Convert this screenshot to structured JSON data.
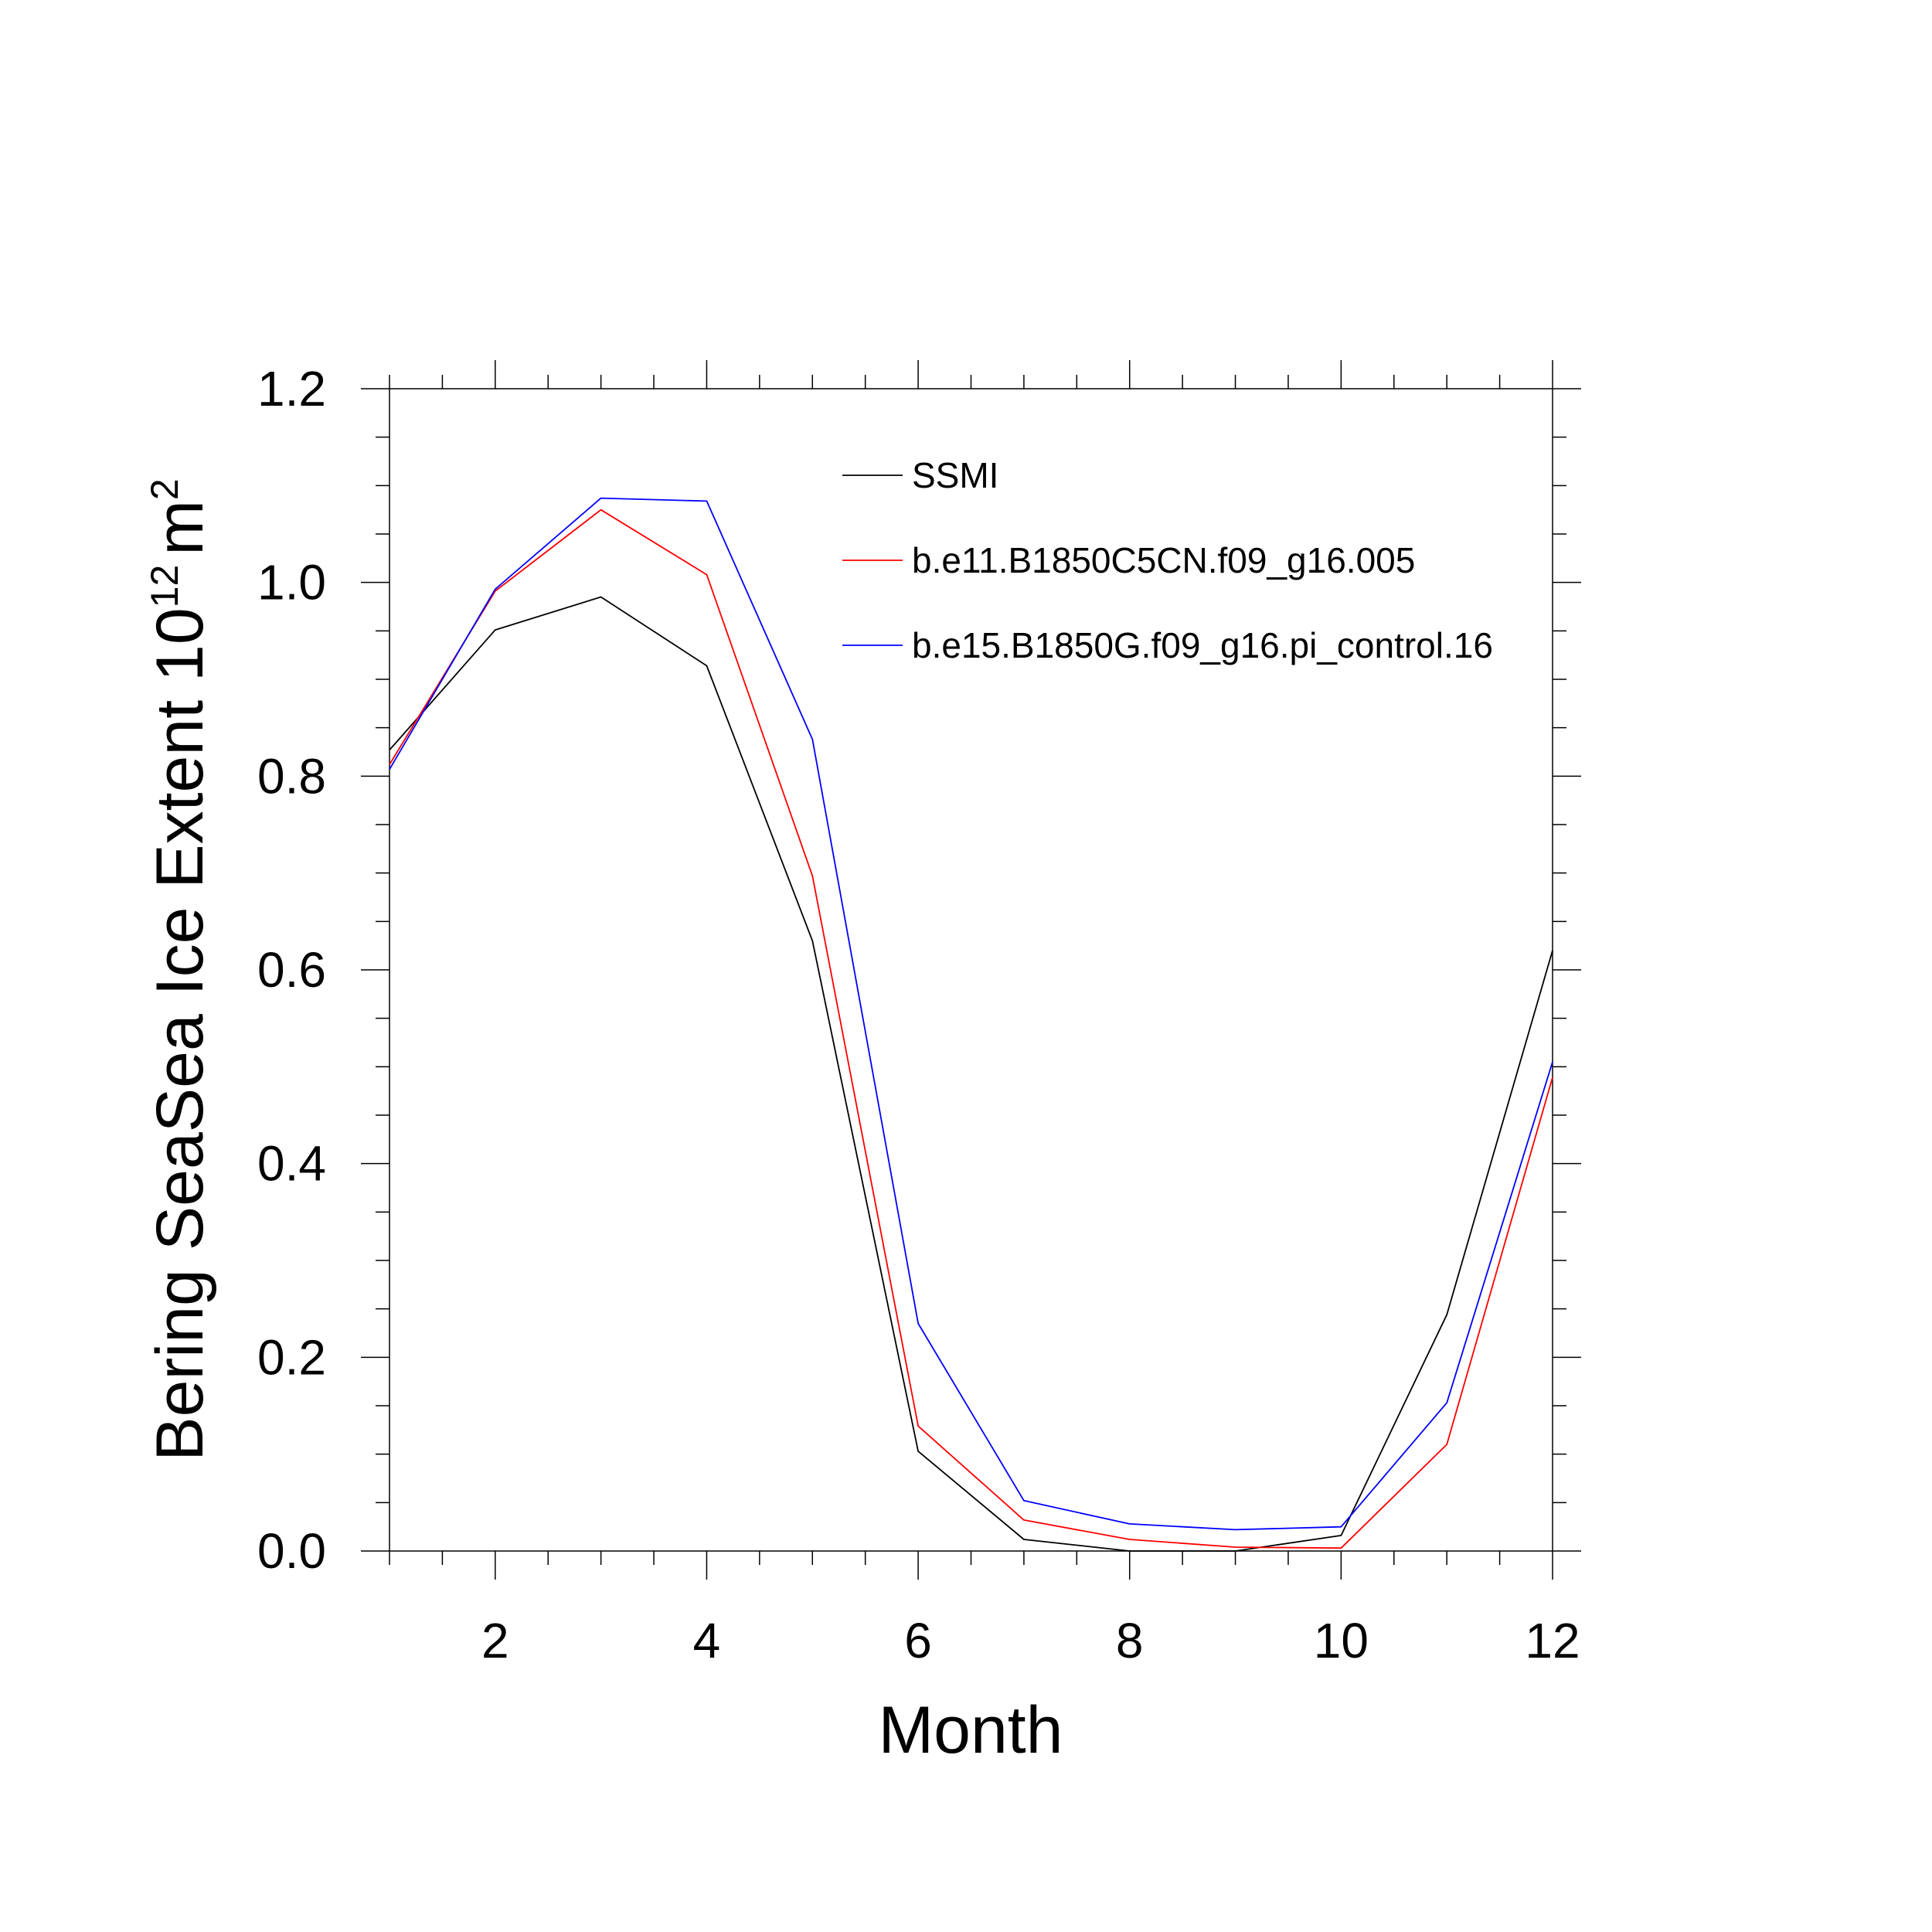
{
  "chart_data": {
    "type": "line",
    "xlabel": "Month",
    "ylabel": {
      "text": "Bering SeaSea Ice Extent 10",
      "exponent": "12",
      "unit": "m",
      "unit_exponent": "2"
    },
    "xlim": [
      1,
      12
    ],
    "ylim": [
      0.0,
      1.2
    ],
    "x_ticks": [
      2,
      4,
      6,
      8,
      10,
      12
    ],
    "x_tick_labels": [
      "2",
      "4",
      "6",
      "8",
      "10",
      "12"
    ],
    "y_ticks": [
      0.0,
      0.2,
      0.4,
      0.6,
      0.8,
      1.0,
      1.2
    ],
    "y_tick_labels": [
      "0.0",
      "0.2",
      "0.4",
      "0.6",
      "0.8",
      "1.0",
      "1.2"
    ],
    "grid": false,
    "legend_position": "top-right",
    "x": [
      1,
      2,
      3,
      4,
      5,
      6,
      7,
      8,
      9,
      10,
      11,
      12
    ],
    "series": [
      {
        "name": "SSMI",
        "color": "#000000",
        "values": [
          0.827,
          0.951,
          0.985,
          0.914,
          0.63,
          0.103,
          0.012,
          0.0,
          0.0,
          0.016,
          0.244,
          0.62
        ]
      },
      {
        "name": "b.e11.B1850C5CN.f09_g16.005",
        "color": "#ff0000",
        "values": [
          0.812,
          0.991,
          1.075,
          1.008,
          0.697,
          0.129,
          0.032,
          0.012,
          0.004,
          0.003,
          0.11,
          0.489
        ]
      },
      {
        "name": "b.e15.B1850G.f09_g16.pi_control.16",
        "color": "#0000ff",
        "values": [
          0.807,
          0.993,
          1.087,
          1.084,
          0.838,
          0.235,
          0.052,
          0.028,
          0.022,
          0.025,
          0.153,
          0.505
        ]
      }
    ]
  }
}
